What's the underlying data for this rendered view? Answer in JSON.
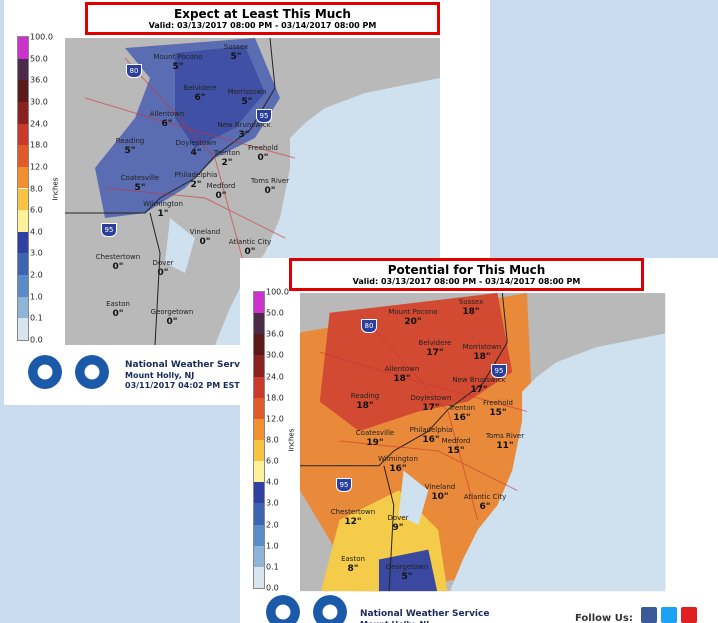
{
  "panels": [
    {
      "title": "Expect at Least This Much",
      "valid": "Valid: 03/13/2017 08:00 PM - 03/14/2017 08:00 PM",
      "legend_title": "Inches",
      "legend_labels": [
        "100.0",
        "50.0",
        "36.0",
        "30.0",
        "24.0",
        "18.0",
        "12.0",
        "8.0",
        "6.0",
        "4.0",
        "3.0",
        "2.0",
        "1.0",
        "0.1",
        "0.0"
      ],
      "cities": [
        {
          "name": "Mount Pocono",
          "amount": "5\""
        },
        {
          "name": "Sussex",
          "amount": "5\""
        },
        {
          "name": "Belvidere",
          "amount": "6\""
        },
        {
          "name": "Morristown",
          "amount": "5\""
        },
        {
          "name": "Allentown",
          "amount": "6\""
        },
        {
          "name": "New Brunswick",
          "amount": "3\""
        },
        {
          "name": "Reading",
          "amount": "5\""
        },
        {
          "name": "Doylestown",
          "amount": "4\""
        },
        {
          "name": "Trenton",
          "amount": "2\""
        },
        {
          "name": "Freehold",
          "amount": "0\""
        },
        {
          "name": "Philadelphia",
          "amount": "2\""
        },
        {
          "name": "Medford",
          "amount": "0\""
        },
        {
          "name": "Coatesville",
          "amount": "5\""
        },
        {
          "name": "Toms River",
          "amount": "0\""
        },
        {
          "name": "Wilmington",
          "amount": "1\""
        },
        {
          "name": "Vineland",
          "amount": "0\""
        },
        {
          "name": "Atlantic City",
          "amount": "0\""
        },
        {
          "name": "Chestertown",
          "amount": "0\""
        },
        {
          "name": "Dover",
          "amount": "0\""
        },
        {
          "name": "Easton",
          "amount": "0\""
        },
        {
          "name": "Georgetown",
          "amount": "0\""
        }
      ],
      "shields": [
        "80",
        "95",
        "95"
      ],
      "footer": {
        "agency": "National Weather Service",
        "office": "Mount Holly, NJ",
        "issued": "03/11/2017 04:02 PM EST"
      }
    },
    {
      "title": "Potential for This Much",
      "valid": "Valid: 03/13/2017 08:00 PM - 03/14/2017 08:00 PM",
      "legend_title": "Inches",
      "legend_labels": [
        "100.0",
        "50.0",
        "36.0",
        "30.0",
        "24.0",
        "18.0",
        "12.0",
        "8.0",
        "6.0",
        "4.0",
        "3.0",
        "2.0",
        "1.0",
        "0.1",
        "0.0"
      ],
      "cities": [
        {
          "name": "Mount Pocono",
          "amount": "20\""
        },
        {
          "name": "Sussex",
          "amount": "18\""
        },
        {
          "name": "Belvidere",
          "amount": "17\""
        },
        {
          "name": "Morristown",
          "amount": "18\""
        },
        {
          "name": "Allentown",
          "amount": "18\""
        },
        {
          "name": "New Brunswick",
          "amount": "17\""
        },
        {
          "name": "Reading",
          "amount": "18\""
        },
        {
          "name": "Doylestown",
          "amount": "17\""
        },
        {
          "name": "Trenton",
          "amount": "16\""
        },
        {
          "name": "Freehold",
          "amount": "15\""
        },
        {
          "name": "Philadelphia",
          "amount": "16\""
        },
        {
          "name": "Medford",
          "amount": "15\""
        },
        {
          "name": "Coatesville",
          "amount": "19\""
        },
        {
          "name": "Toms River",
          "amount": "11\""
        },
        {
          "name": "Wilmington",
          "amount": "16\""
        },
        {
          "name": "Vineland",
          "amount": "10\""
        },
        {
          "name": "Atlantic City",
          "amount": "6\""
        },
        {
          "name": "Chestertown",
          "amount": "12\""
        },
        {
          "name": "Dover",
          "amount": "9\""
        },
        {
          "name": "Easton",
          "amount": "8\""
        },
        {
          "name": "Georgetown",
          "amount": "5\""
        }
      ],
      "shields": [
        "80",
        "95",
        "95"
      ],
      "footer": {
        "agency": "National Weather Service",
        "office": "Mount Holly, NJ",
        "follow": "Follow Us:"
      }
    }
  ]
}
